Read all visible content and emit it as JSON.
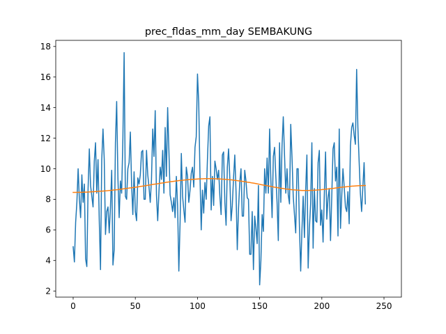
{
  "chart_data": {
    "type": "line",
    "title": "prec_fldas_mm_day SEMBAKUNG",
    "xlabel": "",
    "ylabel": "",
    "xlim": [
      -14,
      264
    ],
    "ylim": [
      1.6,
      18.4
    ],
    "xticks": [
      0,
      50,
      100,
      150,
      200,
      250
    ],
    "yticks": [
      2,
      4,
      6,
      8,
      10,
      12,
      14,
      16,
      18
    ],
    "grid": false,
    "legend": "none",
    "x_start": 0,
    "series": [
      {
        "color": "#1f77b4",
        "values": [
          4.9,
          3.9,
          6.5,
          7.8,
          10.0,
          8.0,
          6.8,
          9.6,
          7.8,
          9.0,
          4.1,
          3.6,
          8.7,
          11.3,
          8.9,
          8.2,
          7.5,
          10.5,
          11.7,
          8.4,
          10.6,
          6.6,
          3.4,
          10.6,
          12.6,
          10.6,
          5.7,
          7.2,
          7.5,
          5.8,
          7.5,
          9.9,
          3.7,
          4.7,
          11.7,
          14.4,
          9.4,
          6.8,
          9.2,
          8.4,
          12.0,
          17.6,
          8.2,
          8.0,
          10.0,
          10.4,
          12.4,
          9.0,
          7.0,
          9.8,
          7.2,
          6.6,
          9.4,
          9.0,
          9.6,
          11.1,
          11.2,
          8.0,
          8.0,
          11.2,
          9.6,
          8.8,
          7.8,
          9.3,
          12.6,
          10.8,
          13.8,
          8.3,
          6.6,
          8.5,
          10.1,
          9.3,
          11.2,
          8.4,
          12.7,
          9.5,
          14.0,
          11.2,
          8.3,
          7.8,
          7.2,
          8.1,
          6.8,
          9.5,
          7.6,
          3.3,
          6.5,
          11.0,
          8.2,
          7.3,
          6.5,
          10.1,
          9.5,
          7.8,
          8.6,
          9.7,
          10.1,
          8.8,
          11.4,
          12.1,
          16.2,
          14.3,
          9.6,
          6.0,
          8.6,
          7.1,
          9.1,
          8.0,
          10.6,
          12.8,
          13.4,
          7.3,
          9.5,
          7.6,
          10.5,
          10.0,
          9.3,
          9.9,
          8.2,
          7.0,
          10.9,
          11.1,
          7.8,
          6.3,
          10.1,
          11.3,
          9.4,
          6.6,
          7.6,
          9.4,
          10.9,
          8.5,
          4.7,
          7.4,
          9.1,
          10.0,
          6.9,
          6.9,
          9.9,
          9.2,
          8.1,
          8.0,
          4.4,
          4.4,
          7.2,
          3.4,
          6.9,
          6.1,
          5.1,
          8.9,
          2.4,
          4.0,
          7.0,
          5.9,
          10.0,
          8.4,
          10.7,
          8.4,
          12.6,
          9.3,
          6.8,
          10.8,
          11.4,
          9.5,
          7.8,
          5.3,
          11.7,
          7.8,
          11.5,
          13.4,
          10.9,
          8.4,
          10.0,
          8.3,
          7.7,
          12.9,
          10.8,
          8.2,
          7.0,
          5.8,
          10.0,
          10.0,
          6.2,
          3.3,
          6.0,
          8.2,
          5.5,
          8.6,
          10.9,
          3.5,
          6.1,
          7.7,
          11.7,
          4.8,
          8.7,
          6.6,
          6.5,
          10.4,
          11.2,
          6.3,
          7.3,
          5.2,
          8.3,
          11.1,
          6.7,
          8.1,
          8.7,
          5.3,
          8.2,
          11.3,
          11.7,
          9.2,
          10.1,
          5.6,
          12.6,
          6.1,
          8.2,
          10.0,
          8.8,
          7.5,
          7.2,
          8.5,
          6.4,
          11.5,
          12.7,
          13.0,
          12.2,
          11.6,
          16.5,
          12.7,
          10.5,
          8.4,
          7.2,
          8.8,
          10.4,
          7.7
        ]
      },
      {
        "color": "#ff7f0e",
        "values": [
          8.45,
          8.45,
          8.46,
          8.46,
          8.46,
          8.47,
          8.47,
          8.48,
          8.49,
          8.5,
          8.51,
          8.52,
          8.53,
          8.54,
          8.55,
          8.56,
          8.58,
          8.59,
          8.61,
          8.62,
          8.64,
          8.66,
          8.68,
          8.7,
          8.72,
          8.74,
          8.76,
          8.78,
          8.8,
          8.82,
          8.85,
          8.87,
          8.89,
          8.92,
          8.94,
          8.97,
          8.99,
          9.01,
          9.04,
          9.06,
          9.08,
          9.11,
          9.13,
          9.15,
          9.17,
          9.19,
          9.21,
          9.23,
          9.24,
          9.26,
          9.27,
          9.29,
          9.3,
          9.31,
          9.32,
          9.33,
          9.34,
          9.34,
          9.35,
          9.35,
          9.35,
          9.35,
          9.35,
          9.34,
          9.34,
          9.33,
          9.32,
          9.31,
          9.3,
          9.28,
          9.27,
          9.25,
          9.23,
          9.21,
          9.19,
          9.17,
          9.15,
          9.12,
          9.1,
          9.07,
          9.05,
          9.02,
          8.99,
          8.96,
          8.93,
          8.91,
          8.88,
          8.85,
          8.82,
          8.79,
          8.77,
          8.74,
          8.72,
          8.7,
          8.67,
          8.66,
          8.64,
          8.62,
          8.61,
          8.6,
          8.59,
          8.58,
          8.58,
          8.58,
          8.58,
          8.59,
          8.59,
          8.6,
          8.61,
          8.62,
          8.64,
          8.65,
          8.67,
          8.69,
          8.7,
          8.72,
          8.74,
          8.76,
          8.78,
          8.8,
          8.81,
          8.83,
          8.84,
          8.86,
          8.87,
          8.88,
          8.89,
          8.89,
          8.9,
          8.9
        ]
      }
    ]
  }
}
